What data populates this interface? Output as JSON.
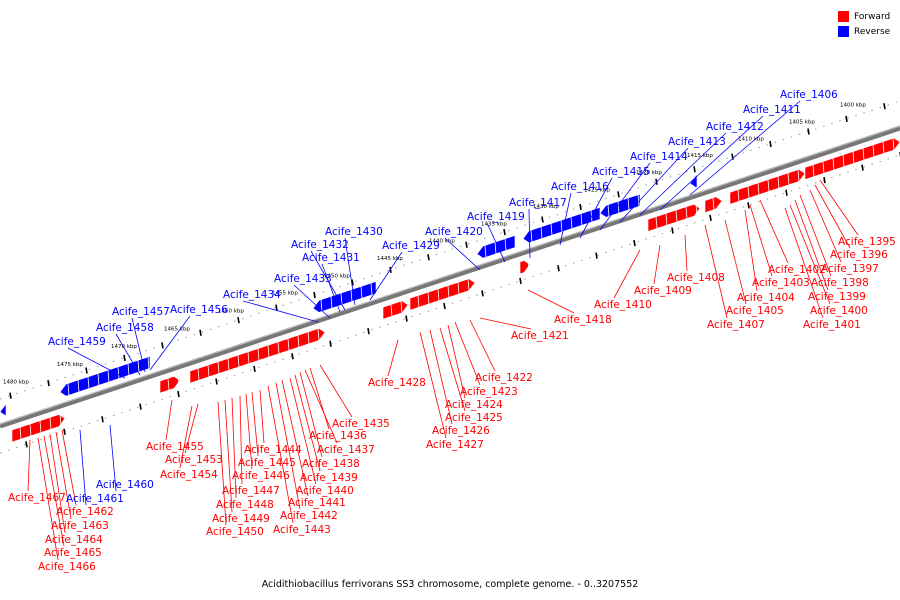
{
  "legend": {
    "forward_label": "Forward",
    "reverse_label": "Reverse",
    "forward_color": "#ff0000",
    "reverse_color": "#0000ff"
  },
  "caption": "Acidithiobacillus ferrivorans SS3 chromosome, complete genome. - 0..3207552",
  "kbp_ticks": [
    "1400 kbp",
    "1405 kbp",
    "1410 kbp",
    "1415 kbp",
    "1420 kbp",
    "1425 kbp",
    "1430 kbp",
    "1435 kbp",
    "1440 kbp",
    "1445 kbp",
    "1450 kbp",
    "1455 kbp",
    "1460 kbp",
    "1465 kbp",
    "1470 kbp",
    "1475 kbp",
    "1480 kbp"
  ],
  "reverse_genes": [
    "Acife_1406",
    "Acife_1411",
    "Acife_1412",
    "Acife_1413",
    "Acife_1414",
    "Acife_1415",
    "Acife_1416",
    "Acife_1417",
    "Acife_1419",
    "Acife_1420",
    "Acife_1429",
    "Acife_1430",
    "Acife_1432",
    "Acife_1431",
    "Acife_1433",
    "Acife_1434",
    "Acife_1456",
    "Acife_1457",
    "Acife_1458",
    "Acife_1459",
    "Acife_1460",
    "Acife_1461"
  ],
  "forward_genes": [
    "Acife_1395",
    "Acife_1396",
    "Acife_1397",
    "Acife_1398",
    "Acife_1399",
    "Acife_1400",
    "Acife_1401",
    "Acife_1402",
    "Acife_1403",
    "Acife_1404",
    "Acife_1405",
    "Acife_1407",
    "Acife_1408",
    "Acife_1409",
    "Acife_1410",
    "Acife_1418",
    "Acife_1421",
    "Acife_1422",
    "Acife_1423",
    "Acife_1424",
    "Acife_1425",
    "Acife_1426",
    "Acife_1427",
    "Acife_1428",
    "Acife_1435",
    "Acife_1436",
    "Acife_1437",
    "Acife_1438",
    "Acife_1439",
    "Acife_1440",
    "Acife_1441",
    "Acife_1442",
    "Acife_1443",
    "Acife_1444",
    "Acife_1445",
    "Acife_1446",
    "Acife_1447",
    "Acife_1448",
    "Acife_1449",
    "Acife_1450",
    "Acife_1453",
    "Acife_1454",
    "Acife_1455",
    "Acife_1462",
    "Acife_1463",
    "Acife_1464",
    "Acife_1465",
    "Acife_1466",
    "Acife_1467"
  ]
}
